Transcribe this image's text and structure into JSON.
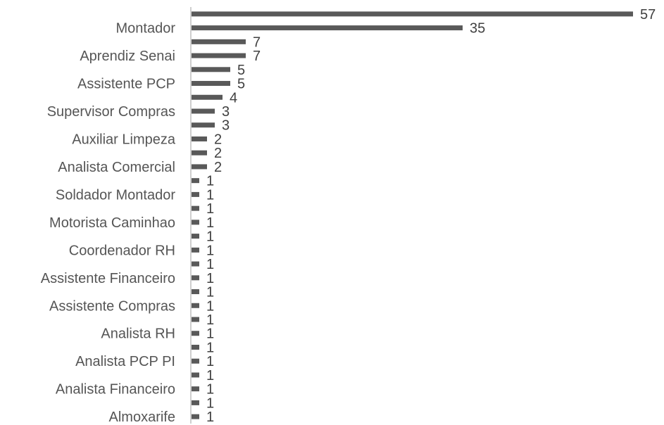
{
  "chart_data": {
    "type": "bar",
    "orientation": "horizontal",
    "title": "",
    "xlabel": "",
    "ylabel": "",
    "categories": [
      "",
      "Montador",
      "",
      "Aprendiz Senai",
      "",
      "Assistente PCP",
      "",
      "Supervisor Compras",
      "",
      "Auxiliar Limpeza",
      "",
      "Analista Comercial",
      "",
      "Soldador Montador",
      "",
      "Motorista Caminhao",
      "",
      "Coordenador RH",
      "",
      "Assistente Financeiro",
      "",
      "Assistente Compras",
      "",
      "Analista RH",
      "",
      "Analista PCP PI",
      "",
      "Analista Financeiro",
      "",
      "Almoxarife"
    ],
    "values": [
      57,
      35,
      7,
      7,
      5,
      5,
      4,
      3,
      3,
      2,
      2,
      2,
      1,
      1,
      1,
      1,
      1,
      1,
      1,
      1,
      1,
      1,
      1,
      1,
      1,
      1,
      1,
      1,
      1,
      1
    ],
    "xlim": [
      0,
      57
    ],
    "grid": false,
    "legend": "none",
    "bar_color": "#595959",
    "axis_color": "#bfbfbf"
  }
}
